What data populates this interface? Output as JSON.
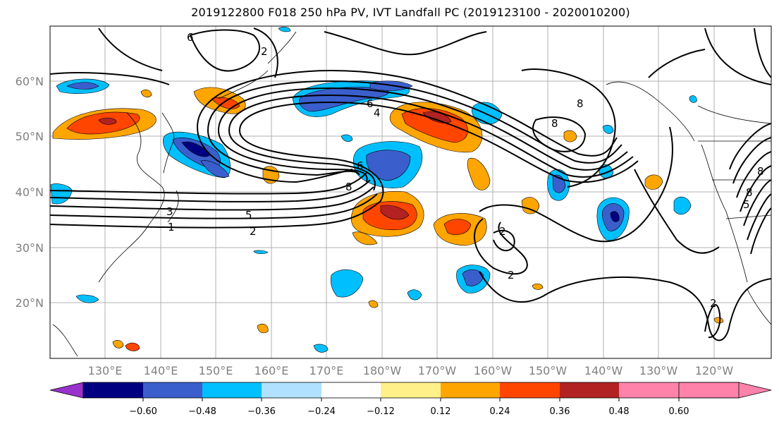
{
  "title": "2019122800 F018 250 hPa PV, IVT Landfall PC (2019123100 - 2020010200)",
  "map": {
    "lat_labels": [
      "60°N",
      "50°N",
      "40°N",
      "30°N",
      "20°N"
    ],
    "lon_labels": [
      "130°E",
      "140°E",
      "150°E",
      "160°E",
      "170°E",
      "180°W",
      "170°W",
      "160°W",
      "150°W",
      "140°W",
      "130°W",
      "120°W"
    ],
    "contour_labels": [
      "6",
      "2",
      "6",
      "4",
      "8",
      "8",
      "6",
      "8",
      "3",
      "5",
      "1",
      "2",
      "2",
      "2",
      "8",
      "5",
      "8",
      "2"
    ]
  },
  "colorbar": {
    "colors": [
      "#9932cc",
      "#000080",
      "#3a5fcd",
      "#00bfff",
      "#b0e2ff",
      "#ffffff",
      "#fff08a",
      "#ffa500",
      "#ff4500",
      "#b22222",
      "#ff82ab"
    ],
    "tick_labels": [
      "−0.60",
      "−0.48",
      "−0.36",
      "−0.24",
      "−0.12",
      "0.12",
      "0.24",
      "0.36",
      "0.48",
      "0.60"
    ]
  }
}
